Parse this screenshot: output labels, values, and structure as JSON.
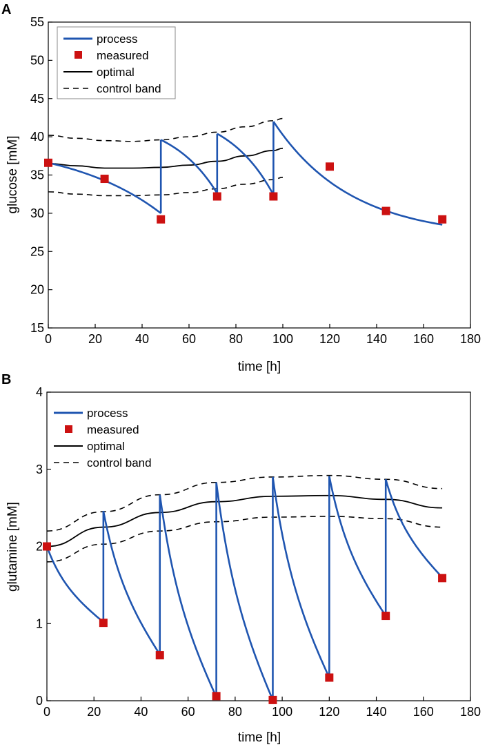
{
  "chart_data": [
    {
      "panel": "A",
      "type": "line",
      "xlabel": "time [h]",
      "ylabel": "glucose [mM]",
      "xlim": [
        0,
        180
      ],
      "ylim": [
        15,
        55
      ],
      "xticks": [
        0,
        20,
        40,
        60,
        80,
        100,
        120,
        140,
        160,
        180
      ],
      "yticks": [
        15,
        20,
        25,
        30,
        35,
        40,
        45,
        50,
        55
      ],
      "legend": [
        "process",
        "measured",
        "optimal",
        "control band"
      ],
      "legend_position": "top-left",
      "colors": {
        "process": "#1f55b0",
        "measured": "#cc1111",
        "optimal": "#000000",
        "band": "#000000"
      },
      "process_segments": [
        {
          "start": [
            0,
            36.6
          ],
          "end": [
            48,
            30.0
          ],
          "mid": [
            24,
            34.6
          ]
        },
        {
          "start": [
            48,
            39.6
          ],
          "end": [
            72,
            32.6
          ]
        },
        {
          "start": [
            72,
            40.4
          ],
          "end": [
            96,
            32.4
          ]
        },
        {
          "start": [
            96,
            42.0
          ],
          "end": [
            168,
            28.5
          ]
        }
      ],
      "jumps": [
        {
          "x": 48,
          "from": 30.0,
          "to": 39.6
        },
        {
          "x": 72,
          "from": 32.6,
          "to": 40.4
        },
        {
          "x": 96,
          "from": 32.4,
          "to": 42.0
        }
      ],
      "measured": {
        "x": [
          0,
          24,
          48,
          72,
          96,
          120,
          144,
          168
        ],
        "y": [
          36.6,
          34.5,
          29.2,
          32.2,
          32.2,
          36.1,
          30.3,
          29.2
        ]
      },
      "optimal": {
        "x": [
          0,
          12,
          24,
          36,
          48,
          60,
          72,
          84,
          96,
          100
        ],
        "y": [
          36.5,
          36.2,
          35.9,
          35.9,
          36.0,
          36.3,
          36.8,
          37.5,
          38.2,
          38.5
        ]
      },
      "band_upper": {
        "x": [
          0,
          12,
          24,
          36,
          48,
          60,
          72,
          84,
          96,
          100
        ],
        "y": [
          40.2,
          39.8,
          39.5,
          39.4,
          39.6,
          40.0,
          40.6,
          41.3,
          42.1,
          42.4
        ]
      },
      "band_lower": {
        "x": [
          0,
          12,
          24,
          36,
          48,
          60,
          72,
          84,
          96,
          100
        ],
        "y": [
          32.8,
          32.5,
          32.3,
          32.3,
          32.4,
          32.7,
          33.2,
          33.8,
          34.4,
          34.7
        ]
      }
    },
    {
      "panel": "B",
      "type": "line",
      "xlabel": "time [h]",
      "ylabel": "glutamine [mM]",
      "xlim": [
        0,
        180
      ],
      "ylim": [
        0,
        4
      ],
      "xticks": [
        0,
        20,
        40,
        60,
        80,
        100,
        120,
        140,
        160,
        180
      ],
      "yticks": [
        0,
        1,
        2,
        3,
        4
      ],
      "legend": [
        "process",
        "measured",
        "optimal",
        "control band"
      ],
      "legend_position": "top-left",
      "colors": {
        "process": "#1f55b0",
        "measured": "#cc1111",
        "optimal": "#000000",
        "band": "#000000"
      },
      "process_segments": [
        {
          "start": [
            0,
            2.0
          ],
          "end": [
            24,
            1.02
          ]
        },
        {
          "start": [
            24,
            2.46
          ],
          "end": [
            48,
            0.6
          ]
        },
        {
          "start": [
            48,
            2.67
          ],
          "end": [
            72,
            0.05
          ]
        },
        {
          "start": [
            72,
            2.83
          ],
          "end": [
            96,
            0.01
          ]
        },
        {
          "start": [
            96,
            2.9
          ],
          "end": [
            120,
            0.3
          ]
        },
        {
          "start": [
            120,
            2.91
          ],
          "end": [
            144,
            1.1
          ]
        },
        {
          "start": [
            144,
            2.87
          ],
          "end": [
            168,
            1.6
          ]
        }
      ],
      "jumps": [
        {
          "x": 24,
          "from": 1.02,
          "to": 2.46
        },
        {
          "x": 48,
          "from": 0.6,
          "to": 2.67
        },
        {
          "x": 72,
          "from": 0.05,
          "to": 2.83
        },
        {
          "x": 96,
          "from": 0.01,
          "to": 2.9
        },
        {
          "x": 120,
          "from": 0.3,
          "to": 2.91
        },
        {
          "x": 144,
          "from": 1.1,
          "to": 2.87
        }
      ],
      "measured": {
        "x": [
          0,
          24,
          48,
          72,
          96,
          120,
          144,
          168
        ],
        "y": [
          2.0,
          1.01,
          0.59,
          0.06,
          0.01,
          0.3,
          1.1,
          1.59
        ]
      },
      "optimal": {
        "x": [
          0,
          24,
          48,
          72,
          96,
          120,
          144,
          168
        ],
        "y": [
          2.0,
          2.25,
          2.44,
          2.58,
          2.65,
          2.66,
          2.61,
          2.5
        ]
      },
      "band_upper": {
        "x": [
          0,
          24,
          48,
          72,
          96,
          120,
          144,
          168
        ],
        "y": [
          2.2,
          2.45,
          2.67,
          2.83,
          2.9,
          2.92,
          2.87,
          2.75
        ]
      },
      "band_lower": {
        "x": [
          0,
          24,
          48,
          72,
          96,
          120,
          144,
          168
        ],
        "y": [
          1.8,
          2.03,
          2.2,
          2.32,
          2.38,
          2.39,
          2.36,
          2.25
        ]
      }
    }
  ]
}
